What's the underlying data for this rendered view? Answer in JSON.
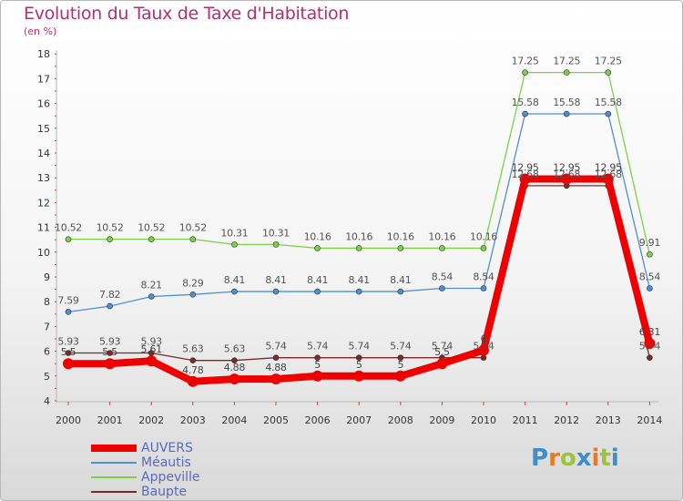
{
  "title": "Evolution du Taux de Taxe d'Habitation",
  "subtitle": "(en %)",
  "logo": {
    "text": "Proxiti",
    "colors": [
      "#3d8ec9",
      "#e8782a",
      "#9cc43a",
      "#3d8ec9",
      "#e8782a",
      "#9cc43a",
      "#3d8ec9"
    ]
  },
  "chart_data": {
    "type": "line",
    "x": [
      2000,
      2001,
      2002,
      2003,
      2004,
      2005,
      2006,
      2007,
      2008,
      2009,
      2010,
      2011,
      2012,
      2013,
      2014
    ],
    "ylim": [
      4,
      18
    ],
    "yticks": [
      4,
      5,
      6,
      7,
      8,
      9,
      10,
      11,
      12,
      13,
      14,
      15,
      16,
      17,
      18
    ],
    "grid": false,
    "legend_position": "bottom-left",
    "series": [
      {
        "name": "AUVERS",
        "color": "#ee0000",
        "values": [
          5.5,
          5.5,
          5.61,
          4.78,
          4.88,
          4.88,
          5,
          5,
          5,
          5.5,
          6.04,
          12.95,
          12.95,
          12.95,
          6.31
        ],
        "labels": [
          "5.5",
          "5.5",
          "5.61",
          "4.78",
          "4.88",
          "4.88",
          "5",
          "5",
          "5",
          "5.5",
          "6",
          "12.95",
          "12.95",
          "12.95",
          "6.31"
        ]
      },
      {
        "name": "Méautis",
        "color": "#4f8fcf",
        "values": [
          7.59,
          7.82,
          8.21,
          8.29,
          8.41,
          8.41,
          8.41,
          8.41,
          8.41,
          8.54,
          8.54,
          15.58,
          15.58,
          15.58,
          8.54
        ],
        "labels": [
          "7.59",
          "7.82",
          "8.21",
          "8.29",
          "8.41",
          "8.41",
          "8.41",
          "8.41",
          "8.41",
          "8.54",
          "8.54",
          "15.58",
          "15.58",
          "15.58",
          "8.54"
        ]
      },
      {
        "name": "Appeville",
        "color": "#7cd14a",
        "values": [
          10.52,
          10.52,
          10.52,
          10.52,
          10.31,
          10.31,
          10.16,
          10.16,
          10.16,
          10.16,
          10.16,
          17.25,
          17.25,
          17.25,
          9.91
        ],
        "labels": [
          "10.52",
          "10.52",
          "10.52",
          "10.52",
          "10.31",
          "10.31",
          "10.16",
          "10.16",
          "10.16",
          "10.16",
          "10.16",
          "17.25",
          "17.25",
          "17.25",
          "9.91"
        ]
      },
      {
        "name": "Baupte",
        "color": "#7a2a2a",
        "values": [
          5.93,
          5.93,
          5.93,
          5.63,
          5.63,
          5.74,
          5.74,
          5.74,
          5.74,
          5.74,
          5.74,
          12.68,
          12.68,
          12.68,
          5.74
        ],
        "labels": [
          "5.93",
          "5.93",
          "5.93",
          "5.63",
          "5.63",
          "5.74",
          "5.74",
          "5.74",
          "5.74",
          "5.74",
          "5.74",
          "12.68",
          "12.68",
          "12.68",
          "5.74"
        ]
      }
    ]
  }
}
